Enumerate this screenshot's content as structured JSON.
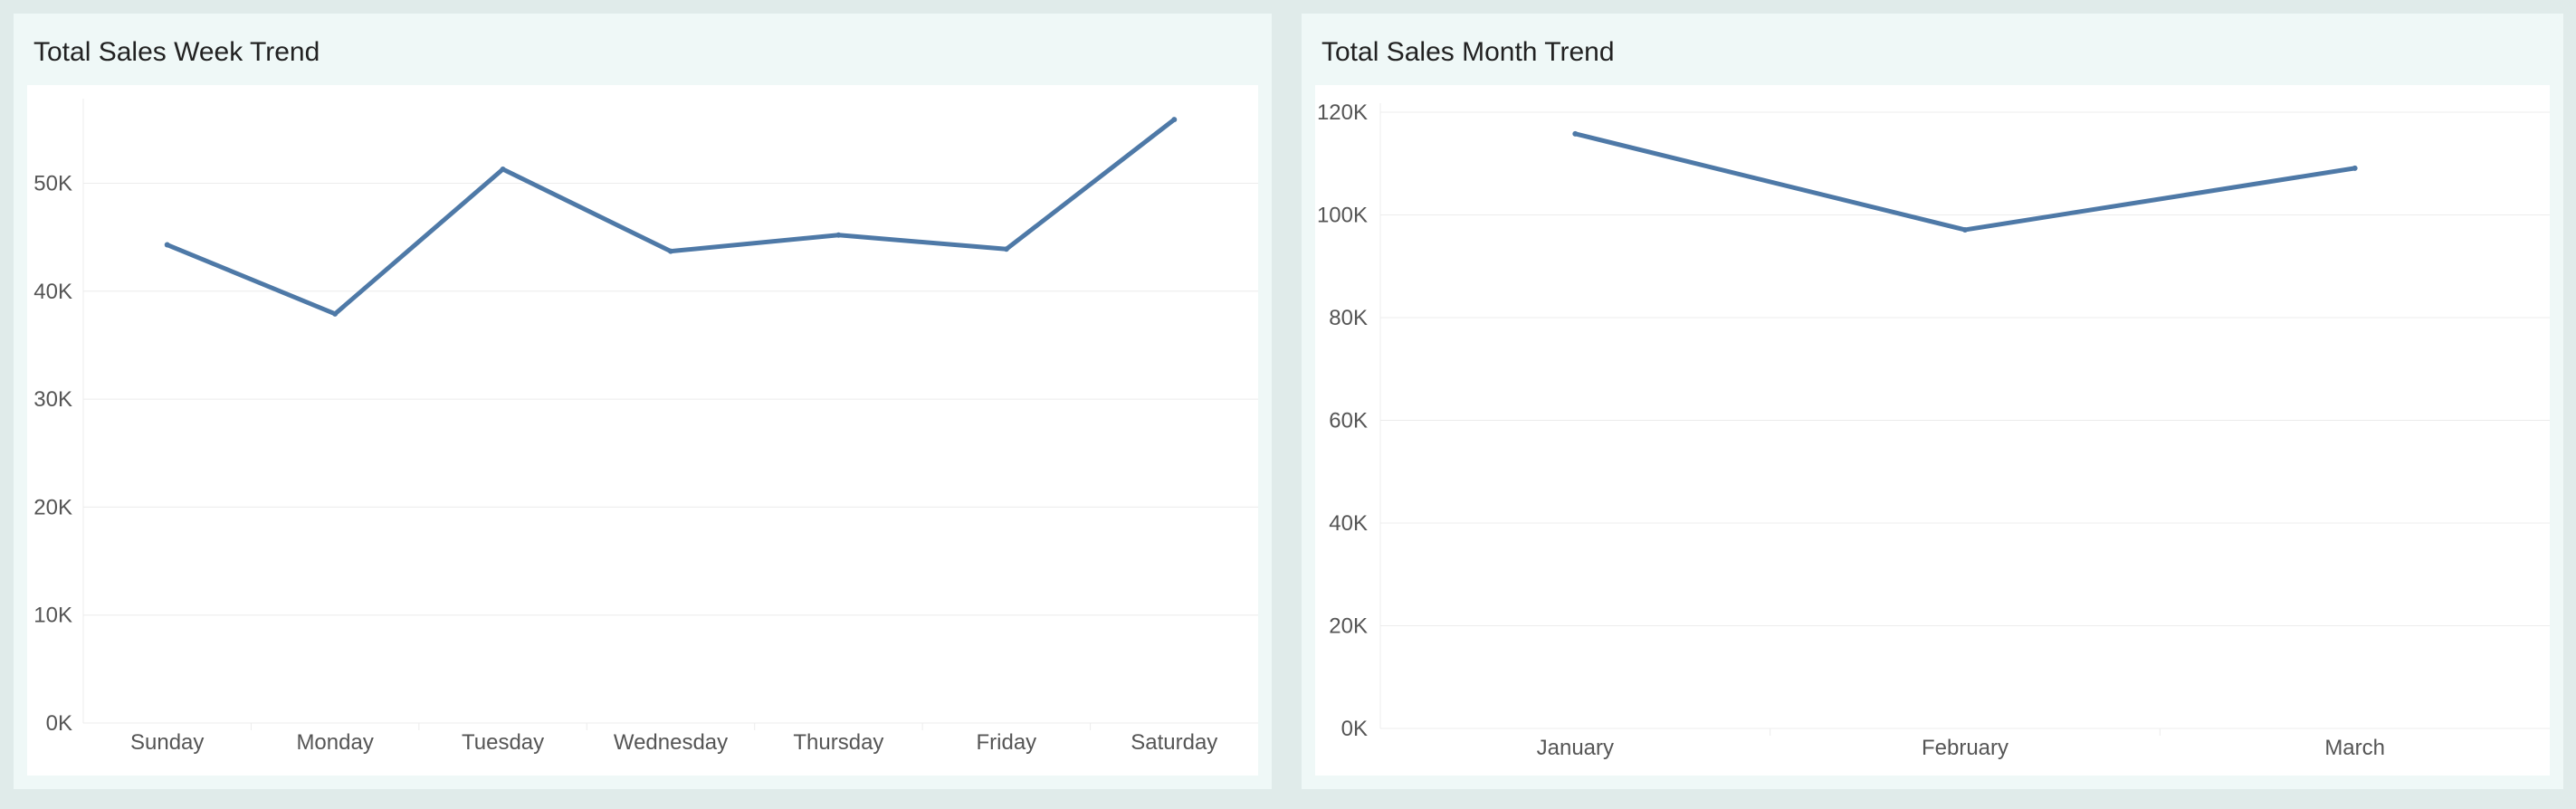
{
  "colors": {
    "line": "#4e79a7",
    "grid": "#ececec",
    "panel_bg": "#eff8f7",
    "page_bg": "#e0ebea"
  },
  "chart_data": [
    {
      "type": "line",
      "title": "Total Sales Week Trend",
      "xlabel": "",
      "ylabel": "",
      "categories": [
        "Sunday",
        "Monday",
        "Tuesday",
        "Wednesday",
        "Thursday",
        "Friday",
        "Saturday"
      ],
      "series": [
        {
          "values": [
            44300,
            37900,
            51300,
            43700,
            45200,
            43900,
            55900
          ]
        }
      ],
      "ylim": [
        0,
        57000
      ],
      "yticks": [
        0,
        10000,
        20000,
        30000,
        40000,
        50000
      ],
      "ytick_labels": [
        "0K",
        "10K",
        "20K",
        "30K",
        "40K",
        "50K"
      ],
      "grid": true,
      "legend": "none"
    },
    {
      "type": "line",
      "title": "Total Sales Month Trend",
      "xlabel": "",
      "ylabel": "",
      "categories": [
        "January",
        "February",
        "March"
      ],
      "series": [
        {
          "values": [
            115800,
            97100,
            109100
          ]
        }
      ],
      "ylim": [
        0,
        120000
      ],
      "yticks": [
        0,
        20000,
        40000,
        60000,
        80000,
        100000,
        120000
      ],
      "ytick_labels": [
        "0K",
        "20K",
        "40K",
        "60K",
        "80K",
        "100K",
        "120K"
      ],
      "grid": true,
      "legend": "none"
    }
  ]
}
